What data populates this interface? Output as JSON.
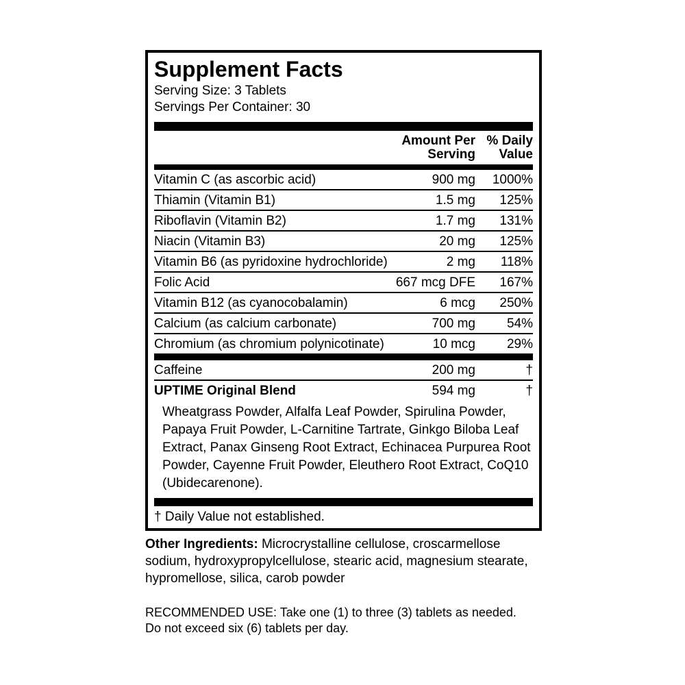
{
  "panel": {
    "title": "Supplement Facts",
    "serving_size": "Serving Size: 3 Tablets",
    "servings_per_container": "Servings Per Container: 30",
    "header": {
      "amount_line1": "Amount Per",
      "amount_line2": "Serving",
      "dv_line1": "% Daily",
      "dv_line2": "Value"
    },
    "nutrients": [
      {
        "name": "Vitamin C (as ascorbic acid)",
        "amount": "900 mg",
        "dv": "1000%"
      },
      {
        "name": "Thiamin (Vitamin B1)",
        "amount": "1.5 mg",
        "dv": "125%"
      },
      {
        "name": "Riboflavin (Vitamin B2)",
        "amount": "1.7 mg",
        "dv": "131%"
      },
      {
        "name": "Niacin (Vitamin B3)",
        "amount": "20 mg",
        "dv": "125%"
      },
      {
        "name": "Vitamin B6 (as pyridoxine hydrochloride)",
        "amount": "2 mg",
        "dv": "118%"
      },
      {
        "name": "Folic Acid",
        "amount": "667 mcg DFE",
        "dv": "167%"
      },
      {
        "name": "Vitamin B12 (as cyanocobalamin)",
        "amount": "6 mcg",
        "dv": "250%"
      },
      {
        "name": "Calcium (as calcium carbonate)",
        "amount": "700 mg",
        "dv": "54%"
      },
      {
        "name": "Chromium (as chromium polynicotinate)",
        "amount": "10 mcg",
        "dv": "29%"
      }
    ],
    "caffeine": {
      "name": "Caffeine",
      "amount": "200 mg",
      "dv": "†"
    },
    "blend": {
      "name": "UPTIME Original Blend",
      "amount": "594 mg",
      "dv": "†",
      "description": "Wheatgrass Powder, Alfalfa Leaf Powder, Spirulina Powder, Papaya Fruit Powder, L-Carnitine Tartrate, Ginkgo Biloba Leaf Extract, Panax Ginseng Root Extract, Echinacea Purpurea Root Powder, Cayenne Fruit Powder, Eleuthero Root Extract, CoQ10 (Ubidecarenone)."
    },
    "footnote": "† Daily Value not established."
  },
  "other_ingredients": {
    "label": "Other Ingredients:",
    "text": "Microcrystalline cellulose, croscarmellose sodium, hydroxypropylcellulose, stearic acid, magnesium stearate, hypromellose, silica, carob powder"
  },
  "recommended_use": {
    "line1": "RECOMMENDED USE: Take one (1) to three (3) tablets as needed.",
    "line2": "Do not exceed six (6) tablets per day."
  },
  "colors": {
    "ink": "#000000",
    "background": "#ffffff"
  }
}
